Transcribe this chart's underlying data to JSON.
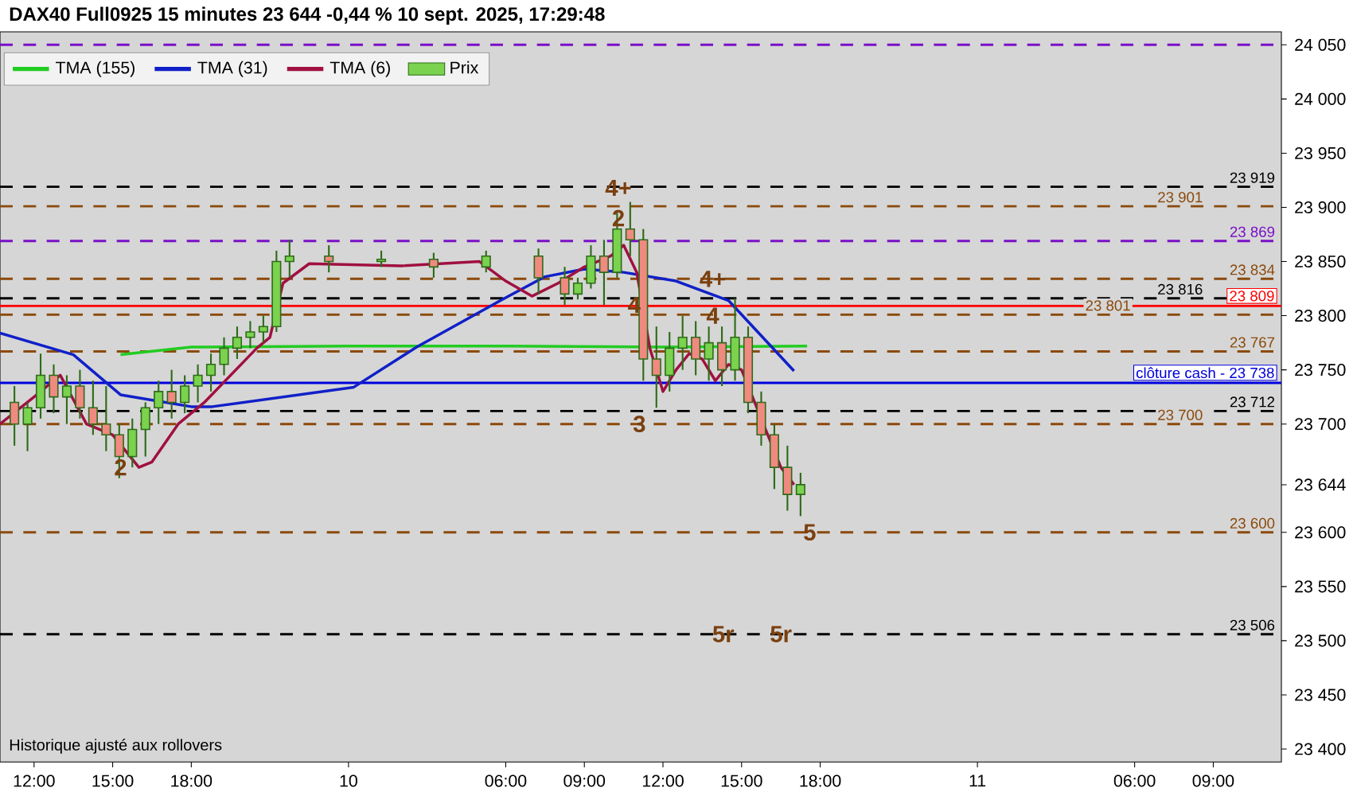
{
  "chart_data": {
    "type": "candlestick",
    "title": "DAX40 Full0925 15 minutes 23 644 -0,44 % 10 sept. 2025, 17:29:48",
    "legend": "top left",
    "xlim": [
      "2025-09-09T10:42",
      "2025-09-11T11:36"
    ],
    "ylim": [
      23388,
      24062
    ],
    "xticks": [
      {
        "value": "2025-09-09T12:00",
        "label": "12:00"
      },
      {
        "value": "2025-09-09T15:00",
        "label": "15:00"
      },
      {
        "value": "2025-09-09T18:00",
        "label": "18:00"
      },
      {
        "value": "2025-09-10T00:00",
        "label": "10"
      },
      {
        "value": "2025-09-10T06:00",
        "label": "06:00"
      },
      {
        "value": "2025-09-10T09:00",
        "label": "09:00"
      },
      {
        "value": "2025-09-10T12:00",
        "label": "12:00"
      },
      {
        "value": "2025-09-10T15:00",
        "label": "15:00"
      },
      {
        "value": "2025-09-10T18:00",
        "label": "18:00"
      },
      {
        "value": "2025-09-11T00:00",
        "label": "11"
      },
      {
        "value": "2025-09-11T06:00",
        "label": "06:00"
      },
      {
        "value": "2025-09-11T09:00",
        "label": "09:00"
      }
    ],
    "yticks": [
      {
        "value": 23400,
        "label": "23 400"
      },
      {
        "value": 23450,
        "label": "23 450"
      },
      {
        "value": 23500,
        "label": "23 500"
      },
      {
        "value": 23550,
        "label": "23 550"
      },
      {
        "value": 23600,
        "label": "23 600"
      },
      {
        "value": 23644,
        "label": "23 644"
      },
      {
        "value": 23700,
        "label": "23 700"
      },
      {
        "value": 23750,
        "label": "23 750"
      },
      {
        "value": 23800,
        "label": "23 800"
      },
      {
        "value": 23850,
        "label": "23 850"
      },
      {
        "value": 23900,
        "label": "23 900"
      },
      {
        "value": 23950,
        "label": "23 950"
      },
      {
        "value": 24000,
        "label": "24 000"
      },
      {
        "value": 24050,
        "label": "24 050"
      }
    ],
    "series": [
      {
        "type": "line",
        "name": "TMA (155)",
        "color": "#22cc22",
        "x": [
          "2025-09-09T15:18",
          "2025-09-09T18:00",
          "2025-09-10T00:00",
          "2025-09-10T06:00",
          "2025-09-10T12:00",
          "2025-09-10T17:30"
        ],
        "values": [
          23764,
          23771,
          23772,
          23772,
          23771,
          23772
        ]
      },
      {
        "type": "line",
        "name": "TMA (31)",
        "color": "#1020c8",
        "x": [
          "2025-09-09T10:42",
          "2025-09-09T13:30",
          "2025-09-09T15:18",
          "2025-09-09T18:00",
          "2025-09-09T18:48",
          "2025-09-10T00:12",
          "2025-09-10T02:36",
          "2025-09-10T05:48",
          "2025-09-10T07:30",
          "2025-09-10T09:00",
          "2025-09-10T10:30",
          "2025-09-10T12:30",
          "2025-09-10T14:30",
          "2025-09-10T17:00"
        ],
        "values": [
          23784,
          23764,
          23727,
          23716,
          23716,
          23734,
          23771,
          23814,
          23836,
          23843,
          23840,
          23832,
          23814,
          23749
        ]
      },
      {
        "type": "line",
        "name": "TMA (6)",
        "color": "#a01040",
        "x": [
          "2025-09-09T10:42",
          "2025-09-09T12:00",
          "2025-09-09T13:00",
          "2025-09-09T14:00",
          "2025-09-09T15:00",
          "2025-09-09T16:00",
          "2025-09-09T16:30",
          "2025-09-09T17:30",
          "2025-09-09T18:30",
          "2025-09-09T19:30",
          "2025-09-09T20:30",
          "2025-09-09T21:00",
          "2025-09-09T21:30",
          "2025-09-09T22:30",
          "2025-09-10T02:00",
          "2025-09-10T05:00",
          "2025-09-10T06:00",
          "2025-09-10T07:00",
          "2025-09-10T08:00",
          "2025-09-10T09:00",
          "2025-09-10T10:00",
          "2025-09-10T10:30",
          "2025-09-10T11:00",
          "2025-09-10T11:30",
          "2025-09-10T12:00",
          "2025-09-10T12:30",
          "2025-09-10T13:00",
          "2025-09-10T13:30",
          "2025-09-10T14:00",
          "2025-09-10T14:30",
          "2025-09-10T15:00",
          "2025-09-10T15:30",
          "2025-09-10T16:00",
          "2025-09-10T16:30",
          "2025-09-10T17:00"
        ],
        "values": [
          23700,
          23725,
          23745,
          23700,
          23690,
          23660,
          23665,
          23700,
          23720,
          23745,
          23770,
          23780,
          23830,
          23848,
          23846,
          23850,
          23832,
          23818,
          23830,
          23845,
          23855,
          23865,
          23840,
          23770,
          23730,
          23750,
          23765,
          23760,
          23740,
          23755,
          23750,
          23720,
          23690,
          23660,
          23644
        ]
      },
      {
        "type": "candlestick",
        "name": "Prix",
        "color": "#2f6b1a",
        "x": [
          "2025-09-09T11:15",
          "2025-09-09T11:45",
          "2025-09-09T12:15",
          "2025-09-09T12:45",
          "2025-09-09T13:15",
          "2025-09-09T13:45",
          "2025-09-09T14:15",
          "2025-09-09T14:45",
          "2025-09-09T15:15",
          "2025-09-09T15:45",
          "2025-09-09T16:15",
          "2025-09-09T16:45",
          "2025-09-09T17:15",
          "2025-09-09T17:45",
          "2025-09-09T18:15",
          "2025-09-09T18:45",
          "2025-09-09T19:15",
          "2025-09-09T19:45",
          "2025-09-09T20:15",
          "2025-09-09T20:45",
          "2025-09-09T21:15",
          "2025-09-09T21:45",
          "2025-09-09T23:15",
          "2025-09-10T01:15",
          "2025-09-10T03:15",
          "2025-09-10T05:15",
          "2025-09-10T07:15",
          "2025-09-10T08:15",
          "2025-09-10T08:45",
          "2025-09-10T09:15",
          "2025-09-10T09:45",
          "2025-09-10T10:15",
          "2025-09-10T10:45",
          "2025-09-10T11:15",
          "2025-09-10T11:45",
          "2025-09-10T12:15",
          "2025-09-10T12:45",
          "2025-09-10T13:15",
          "2025-09-10T13:45",
          "2025-09-10T14:15",
          "2025-09-10T14:45",
          "2025-09-10T15:15",
          "2025-09-10T15:45",
          "2025-09-10T16:15",
          "2025-09-10T16:45",
          "2025-09-10T17:15"
        ],
        "ohlc": [
          [
            23720,
            23735,
            23680,
            23700
          ],
          [
            23700,
            23720,
            23675,
            23715
          ],
          [
            23715,
            23765,
            23705,
            23745
          ],
          [
            23745,
            23755,
            23710,
            23725
          ],
          [
            23725,
            23745,
            23700,
            23735
          ],
          [
            23735,
            23750,
            23705,
            23715
          ],
          [
            23715,
            23740,
            23690,
            23700
          ],
          [
            23700,
            23735,
            23675,
            23690
          ],
          [
            23690,
            23700,
            23650,
            23670
          ],
          [
            23670,
            23705,
            23660,
            23695
          ],
          [
            23695,
            23720,
            23670,
            23715
          ],
          [
            23715,
            23740,
            23700,
            23730
          ],
          [
            23730,
            23750,
            23705,
            23720
          ],
          [
            23720,
            23745,
            23710,
            23735
          ],
          [
            23735,
            23755,
            23720,
            23745
          ],
          [
            23745,
            23765,
            23730,
            23755
          ],
          [
            23755,
            23780,
            23745,
            23770
          ],
          [
            23770,
            23790,
            23760,
            23780
          ],
          [
            23780,
            23795,
            23770,
            23785
          ],
          [
            23785,
            23800,
            23775,
            23790
          ],
          [
            23790,
            23860,
            23785,
            23850
          ],
          [
            23850,
            23870,
            23835,
            23855
          ],
          [
            23855,
            23865,
            23840,
            23850
          ],
          [
            23850,
            23860,
            23845,
            23852
          ],
          [
            23852,
            23858,
            23835,
            23845
          ],
          [
            23845,
            23860,
            23840,
            23855
          ],
          [
            23855,
            23862,
            23820,
            23835
          ],
          [
            23835,
            23845,
            23810,
            23820
          ],
          [
            23820,
            23835,
            23815,
            23830
          ],
          [
            23830,
            23865,
            23825,
            23855
          ],
          [
            23855,
            23870,
            23810,
            23840
          ],
          [
            23840,
            23895,
            23835,
            23880
          ],
          [
            23880,
            23905,
            23855,
            23870
          ],
          [
            23870,
            23880,
            23740,
            23760
          ],
          [
            23760,
            23790,
            23715,
            23745
          ],
          [
            23745,
            23785,
            23730,
            23770
          ],
          [
            23770,
            23800,
            23750,
            23780
          ],
          [
            23780,
            23795,
            23745,
            23760
          ],
          [
            23760,
            23790,
            23740,
            23775
          ],
          [
            23775,
            23790,
            23735,
            23750
          ],
          [
            23750,
            23816,
            23740,
            23780
          ],
          [
            23780,
            23790,
            23710,
            23720
          ],
          [
            23720,
            23730,
            23680,
            23690
          ],
          [
            23690,
            23700,
            23640,
            23660
          ],
          [
            23660,
            23680,
            23620,
            23635
          ],
          [
            23635,
            23655,
            23615,
            23644
          ]
        ]
      }
    ],
    "ref_lines": [
      {
        "axis": "y",
        "value": 24050,
        "color": "#7a10c8",
        "line_style": "dashed"
      },
      {
        "axis": "y",
        "value": 23919,
        "label": "23 919",
        "color": "#000000",
        "line_style": "dashed"
      },
      {
        "axis": "y",
        "value": 23901,
        "label": "23 901",
        "color": "#8b4a0c",
        "line_style": "dashed"
      },
      {
        "axis": "y",
        "value": 23869,
        "label": "23 869",
        "color": "#7a10c8",
        "line_style": "dashed"
      },
      {
        "axis": "y",
        "value": 23834,
        "label": "23 834",
        "color": "#8b4a0c",
        "line_style": "dashed"
      },
      {
        "axis": "y",
        "value": 23816,
        "label": "23 816",
        "color": "#000000",
        "line_style": "dashed"
      },
      {
        "axis": "y",
        "value": 23809,
        "label": "23 809",
        "color": "#ff0000",
        "line_style": "solid"
      },
      {
        "axis": "y",
        "value": 23801,
        "label": "23 801",
        "color": "#8b4a0c",
        "line_style": "dashed"
      },
      {
        "axis": "y",
        "value": 23767,
        "label": "23 767",
        "color": "#8b4a0c",
        "line_style": "dashed"
      },
      {
        "axis": "y",
        "value": 23738,
        "label": "clôture cash -  23 738",
        "color": "#0000dd",
        "line_style": "solid"
      },
      {
        "axis": "y",
        "value": 23712,
        "label": "23 712",
        "color": "#000000",
        "line_style": "dashed"
      },
      {
        "axis": "y",
        "value": 23700,
        "label": "23 700",
        "color": "#8b4a0c",
        "line_style": "dashed"
      },
      {
        "axis": "y",
        "value": 23600,
        "label": "23 600",
        "color": "#8b4a0c",
        "line_style": "dashed"
      },
      {
        "axis": "y",
        "value": 23506,
        "label": "23 506",
        "color": "#000000",
        "line_style": "dashed"
      }
    ],
    "annotations": [
      {
        "text": "4+",
        "x": "2025-09-10T10:18",
        "y": 23918
      },
      {
        "text": "2",
        "x": "2025-09-10T10:18",
        "y": 23890
      },
      {
        "text": "4",
        "x": "2025-09-10T10:54",
        "y": 23810
      },
      {
        "text": "4+",
        "x": "2025-09-10T13:54",
        "y": 23834
      },
      {
        "text": "4",
        "x": "2025-09-10T13:54",
        "y": 23800
      },
      {
        "text": "3",
        "x": "2025-09-10T11:06",
        "y": 23700
      },
      {
        "text": "2",
        "x": "2025-09-09T15:18",
        "y": 23660
      },
      {
        "text": "5",
        "x": "2025-09-10T17:36",
        "y": 23600
      },
      {
        "text": "5r",
        "x": "2025-09-10T14:18",
        "y": 23506
      },
      {
        "text": "5r",
        "x": "2025-09-10T16:30",
        "y": 23506
      },
      "Historique ajusté aux rollovers"
    ]
  }
}
